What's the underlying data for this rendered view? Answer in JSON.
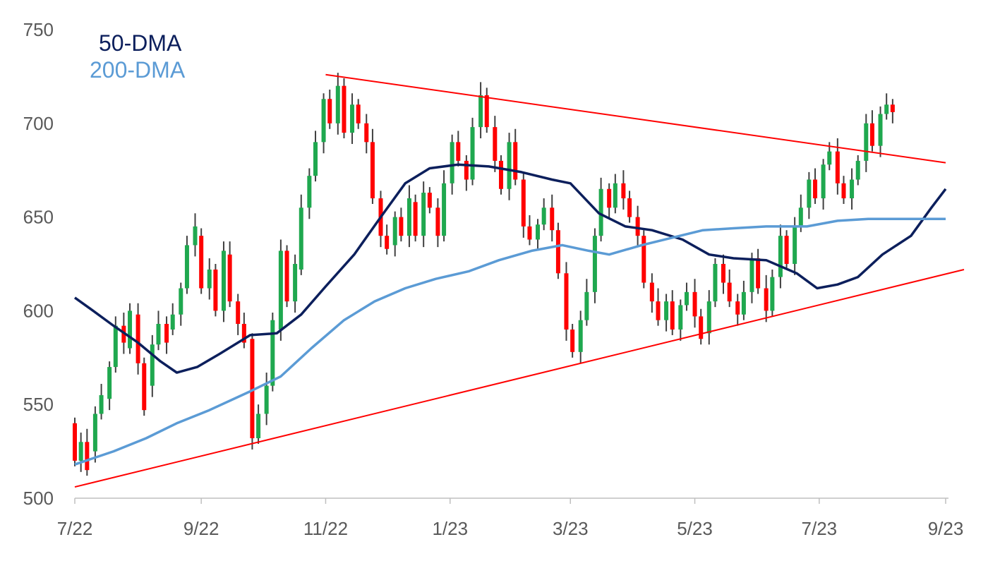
{
  "chart_data": {
    "type": "candlestick",
    "title": "",
    "xlabel": "",
    "ylabel": "",
    "x_range": [
      "2022-07-01",
      "2023-09-01"
    ],
    "ylim": [
      500,
      750
    ],
    "yticks": [
      500,
      550,
      600,
      650,
      700,
      750
    ],
    "xticks": [
      {
        "date": "2022-07-01",
        "label": "7/22"
      },
      {
        "date": "2022-09-01",
        "label": "9/22"
      },
      {
        "date": "2022-11-01",
        "label": "11/22"
      },
      {
        "date": "2023-01-01",
        "label": "1/23"
      },
      {
        "date": "2023-03-01",
        "label": "3/23"
      },
      {
        "date": "2023-05-01",
        "label": "5/23"
      },
      {
        "date": "2023-07-01",
        "label": "7/23"
      },
      {
        "date": "2023-09-01",
        "label": "9/23"
      }
    ],
    "grid": false,
    "legend_position": "top-left",
    "colors": {
      "up": "#1fa84f",
      "down": "#ff0000",
      "wick": "#404040",
      "dma50": "#0c1f5c",
      "dma200": "#5b9bd5",
      "trendline": "#ff0000"
    },
    "series": [
      {
        "name": "50-DMA",
        "points": [
          [
            "2022-07-01",
            607
          ],
          [
            "2022-07-10",
            600
          ],
          [
            "2022-07-20",
            592
          ],
          [
            "2022-08-01",
            583
          ],
          [
            "2022-08-12",
            573
          ],
          [
            "2022-08-20",
            567
          ],
          [
            "2022-08-30",
            570
          ],
          [
            "2022-09-10",
            577
          ],
          [
            "2022-09-25",
            587
          ],
          [
            "2022-10-08",
            588
          ],
          [
            "2022-10-20",
            598
          ],
          [
            "2022-11-01",
            613
          ],
          [
            "2022-11-15",
            630
          ],
          [
            "2022-11-28",
            650
          ],
          [
            "2022-12-10",
            668
          ],
          [
            "2022-12-22",
            676
          ],
          [
            "2023-01-05",
            678
          ],
          [
            "2023-01-20",
            677
          ],
          [
            "2023-02-05",
            674
          ],
          [
            "2023-02-20",
            670
          ],
          [
            "2023-03-01",
            668
          ],
          [
            "2023-03-15",
            652
          ],
          [
            "2023-03-28",
            645
          ],
          [
            "2023-04-10",
            643
          ],
          [
            "2023-04-25",
            638
          ],
          [
            "2023-05-08",
            630
          ],
          [
            "2023-05-20",
            628
          ],
          [
            "2023-06-05",
            627
          ],
          [
            "2023-06-20",
            620
          ],
          [
            "2023-06-30",
            612
          ],
          [
            "2023-07-10",
            614
          ],
          [
            "2023-07-20",
            618
          ],
          [
            "2023-08-01",
            630
          ],
          [
            "2023-08-15",
            640
          ],
          [
            "2023-08-25",
            655
          ],
          [
            "2023-09-01",
            665
          ]
        ]
      },
      {
        "name": "200-DMA",
        "points": [
          [
            "2022-07-01",
            518
          ],
          [
            "2022-07-20",
            525
          ],
          [
            "2022-08-05",
            532
          ],
          [
            "2022-08-20",
            540
          ],
          [
            "2022-09-05",
            547
          ],
          [
            "2022-09-25",
            557
          ],
          [
            "2022-10-10",
            565
          ],
          [
            "2022-10-25",
            580
          ],
          [
            "2022-11-10",
            595
          ],
          [
            "2022-11-25",
            605
          ],
          [
            "2022-12-10",
            612
          ],
          [
            "2022-12-25",
            617
          ],
          [
            "2023-01-10",
            621
          ],
          [
            "2023-01-25",
            627
          ],
          [
            "2023-02-10",
            632
          ],
          [
            "2023-02-25",
            635
          ],
          [
            "2023-03-10",
            632
          ],
          [
            "2023-03-20",
            630
          ],
          [
            "2023-04-05",
            635
          ],
          [
            "2023-04-20",
            639
          ],
          [
            "2023-05-05",
            643
          ],
          [
            "2023-05-20",
            644
          ],
          [
            "2023-06-05",
            645
          ],
          [
            "2023-06-25",
            645
          ],
          [
            "2023-07-10",
            648
          ],
          [
            "2023-07-25",
            649
          ],
          [
            "2023-08-10",
            649
          ],
          [
            "2023-08-25",
            649
          ],
          [
            "2023-09-01",
            649
          ]
        ]
      }
    ],
    "trendlines": [
      {
        "from": [
          "2022-11-01",
          726
        ],
        "to": [
          "2023-09-01",
          679
        ]
      },
      {
        "from": [
          "2022-07-01",
          506
        ],
        "to": [
          "2023-09-10",
          622
        ]
      }
    ],
    "candles": [
      [
        "2022-07-01",
        540,
        520
      ],
      [
        "2022-07-04",
        520,
        530
      ],
      [
        "2022-07-07",
        530,
        515
      ],
      [
        "2022-07-11",
        525,
        545
      ],
      [
        "2022-07-14",
        545,
        555
      ],
      [
        "2022-07-18",
        553,
        570
      ],
      [
        "2022-07-21",
        570,
        592
      ],
      [
        "2022-07-25",
        592,
        583
      ],
      [
        "2022-07-28",
        580,
        600
      ],
      [
        "2022-08-01",
        598,
        572
      ],
      [
        "2022-08-04",
        572,
        547
      ],
      [
        "2022-08-08",
        560,
        582
      ],
      [
        "2022-08-11",
        582,
        593
      ],
      [
        "2022-08-15",
        593,
        583
      ],
      [
        "2022-08-18",
        590,
        598
      ],
      [
        "2022-08-22",
        598,
        612
      ],
      [
        "2022-08-25",
        612,
        635
      ],
      [
        "2022-08-29",
        635,
        645
      ],
      [
        "2022-09-01",
        640,
        612
      ],
      [
        "2022-09-05",
        612,
        622
      ],
      [
        "2022-09-08",
        622,
        600
      ],
      [
        "2022-09-12",
        600,
        632
      ],
      [
        "2022-09-15",
        630,
        605
      ],
      [
        "2022-09-19",
        605,
        593
      ],
      [
        "2022-09-22",
        593,
        583
      ],
      [
        "2022-09-26",
        585,
        532
      ],
      [
        "2022-09-29",
        532,
        545
      ],
      [
        "2022-10-03",
        545,
        560
      ],
      [
        "2022-10-06",
        560,
        595
      ],
      [
        "2022-10-10",
        590,
        632
      ],
      [
        "2022-10-13",
        632,
        605
      ],
      [
        "2022-10-17",
        605,
        625
      ],
      [
        "2022-10-20",
        622,
        655
      ],
      [
        "2022-10-24",
        655,
        672
      ],
      [
        "2022-10-27",
        672,
        690
      ],
      [
        "2022-10-31",
        690,
        713
      ],
      [
        "2022-11-03",
        713,
        700
      ],
      [
        "2022-11-07",
        700,
        720
      ],
      [
        "2022-11-10",
        720,
        695
      ],
      [
        "2022-11-14",
        695,
        710
      ],
      [
        "2022-11-17",
        710,
        700
      ],
      [
        "2022-11-21",
        700,
        690
      ],
      [
        "2022-11-24",
        690,
        660
      ],
      [
        "2022-11-28",
        660,
        640
      ],
      [
        "2022-12-01",
        640,
        633
      ],
      [
        "2022-12-05",
        635,
        650
      ],
      [
        "2022-12-08",
        650,
        640
      ],
      [
        "2022-12-12",
        640,
        660
      ],
      [
        "2022-12-15",
        658,
        640
      ],
      [
        "2022-12-19",
        640,
        663
      ],
      [
        "2022-12-22",
        663,
        655
      ],
      [
        "2022-12-26",
        655,
        640
      ],
      [
        "2022-12-29",
        640,
        668
      ],
      [
        "2023-01-02",
        668,
        690
      ],
      [
        "2023-01-05",
        690,
        680
      ],
      [
        "2023-01-09",
        680,
        670
      ],
      [
        "2023-01-12",
        670,
        698
      ],
      [
        "2023-01-16",
        698,
        715
      ],
      [
        "2023-01-19",
        715,
        698
      ],
      [
        "2023-01-23",
        698,
        680
      ],
      [
        "2023-01-26",
        680,
        665
      ],
      [
        "2023-01-30",
        665,
        690
      ],
      [
        "2023-02-02",
        690,
        670
      ],
      [
        "2023-02-06",
        670,
        645
      ],
      [
        "2023-02-09",
        645,
        638
      ],
      [
        "2023-02-13",
        638,
        646
      ],
      [
        "2023-02-16",
        646,
        655
      ],
      [
        "2023-02-20",
        655,
        643
      ],
      [
        "2023-02-23",
        643,
        620
      ],
      [
        "2023-02-27",
        620,
        590
      ],
      [
        "2023-03-02",
        590,
        578
      ],
      [
        "2023-03-06",
        578,
        595
      ],
      [
        "2023-03-09",
        595,
        610
      ],
      [
        "2023-03-13",
        610,
        640
      ],
      [
        "2023-03-16",
        640,
        665
      ],
      [
        "2023-03-20",
        665,
        655
      ],
      [
        "2023-03-23",
        655,
        668
      ],
      [
        "2023-03-27",
        668,
        660
      ],
      [
        "2023-03-30",
        660,
        650
      ],
      [
        "2023-04-03",
        650,
        640
      ],
      [
        "2023-04-06",
        640,
        615
      ],
      [
        "2023-04-10",
        615,
        605
      ],
      [
        "2023-04-13",
        605,
        595
      ],
      [
        "2023-04-17",
        595,
        605
      ],
      [
        "2023-04-20",
        605,
        590
      ],
      [
        "2023-04-24",
        590,
        603
      ],
      [
        "2023-04-27",
        603,
        610
      ],
      [
        "2023-05-01",
        610,
        597
      ],
      [
        "2023-05-04",
        597,
        585
      ],
      [
        "2023-05-08",
        588,
        605
      ],
      [
        "2023-05-11",
        605,
        625
      ],
      [
        "2023-05-15",
        625,
        615
      ],
      [
        "2023-05-18",
        615,
        605
      ],
      [
        "2023-05-22",
        605,
        598
      ],
      [
        "2023-05-25",
        598,
        610
      ],
      [
        "2023-05-29",
        610,
        628
      ],
      [
        "2023-06-01",
        628,
        612
      ],
      [
        "2023-06-05",
        612,
        600
      ],
      [
        "2023-06-08",
        600,
        618
      ],
      [
        "2023-06-12",
        618,
        640
      ],
      [
        "2023-06-15",
        640,
        625
      ],
      [
        "2023-06-19",
        625,
        645
      ],
      [
        "2023-06-22",
        645,
        655
      ],
      [
        "2023-06-26",
        655,
        670
      ],
      [
        "2023-06-29",
        670,
        660
      ],
      [
        "2023-07-03",
        660,
        678
      ],
      [
        "2023-07-06",
        678,
        685
      ],
      [
        "2023-07-10",
        685,
        668
      ],
      [
        "2023-07-13",
        668,
        660
      ],
      [
        "2023-07-17",
        660,
        670
      ],
      [
        "2023-07-20",
        670,
        680
      ],
      [
        "2023-07-24",
        680,
        700
      ],
      [
        "2023-07-27",
        700,
        688
      ],
      [
        "2023-07-31",
        688,
        705
      ],
      [
        "2023-08-03",
        705,
        710
      ],
      [
        "2023-08-06",
        710,
        706
      ]
    ]
  }
}
